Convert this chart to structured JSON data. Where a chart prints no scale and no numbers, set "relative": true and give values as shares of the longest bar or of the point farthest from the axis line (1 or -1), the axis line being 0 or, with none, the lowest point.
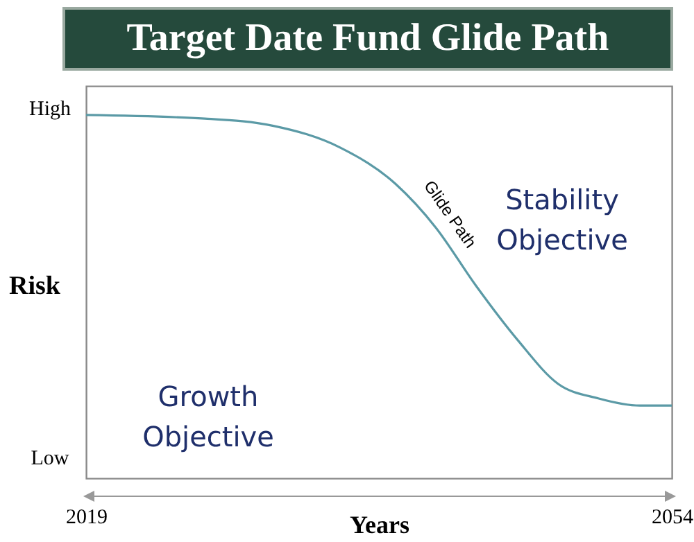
{
  "chart_data": {
    "type": "line",
    "title": "Target Date Fund Glide Path",
    "xlabel": "Years",
    "ylabel": "Risk",
    "relative": true,
    "x": [
      2019,
      2026.1,
      2030.2,
      2034.2,
      2037.5,
      2039.9,
      2042.3,
      2044.8,
      2047.2,
      2049.6,
      2052.1,
      2054
    ],
    "series": [
      {
        "name": "Glide Path",
        "color": "#5b9aa6",
        "values": [
          1,
          0.99,
          0.97,
          0.91,
          0.81,
          0.69,
          0.53,
          0.38,
          0.26,
          0.22,
          0.2,
          0.2
        ]
      }
    ],
    "xlim": [
      2019,
      2054
    ],
    "xticks": [
      2019,
      2054
    ],
    "annotations": [
      "High",
      "Low",
      "Stability Objective",
      "Growth Objective"
    ],
    "grid": false,
    "marker": "none",
    "line_style": "solid"
  }
}
